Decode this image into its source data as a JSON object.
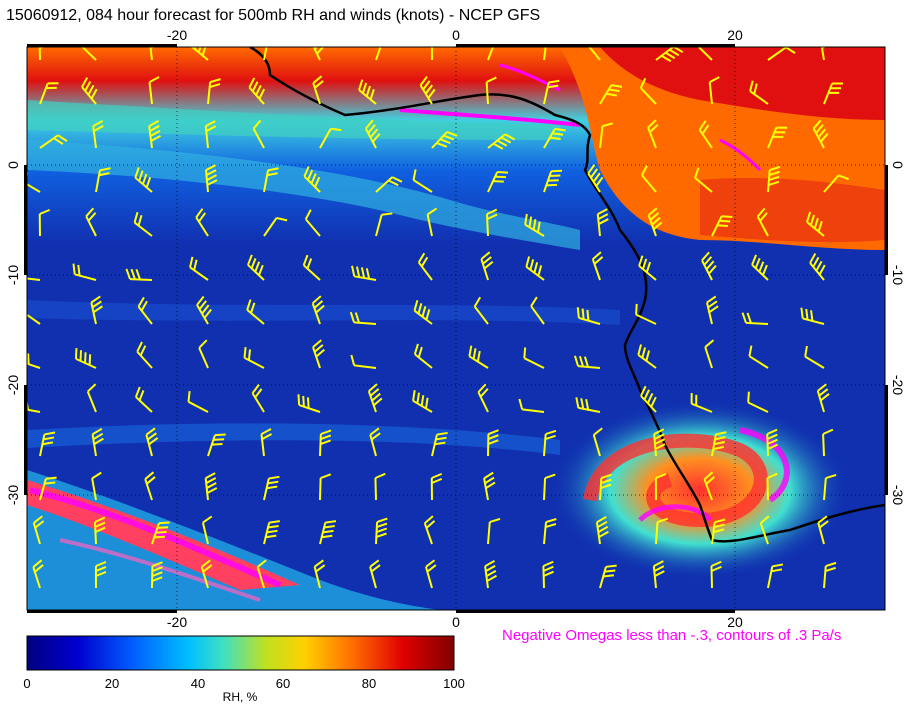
{
  "title": "15060912, 084 hour forecast for 500mb RH and winds (knots) - NCEP GFS",
  "map": {
    "lon_ticks": [
      "-20",
      "0",
      "20"
    ],
    "lat_ticks": [
      "0",
      "-10",
      "-20",
      "-30"
    ],
    "colors": {
      "wind_barb": "#ffff00",
      "omega_contour": "#ff00ff",
      "coastline": "#000000"
    }
  },
  "omega_note": "Negative Omegas less than -.3, contours of .3 Pa/s",
  "colorbar": {
    "label": "RH, %",
    "ticks": [
      "0",
      "20",
      "40",
      "60",
      "80",
      "100"
    ],
    "gradient": [
      "#000080",
      "#0000d0",
      "#0060ff",
      "#00c0ff",
      "#40e0c0",
      "#c0e020",
      "#ffd000",
      "#ff7000",
      "#e00000",
      "#800000"
    ]
  }
}
